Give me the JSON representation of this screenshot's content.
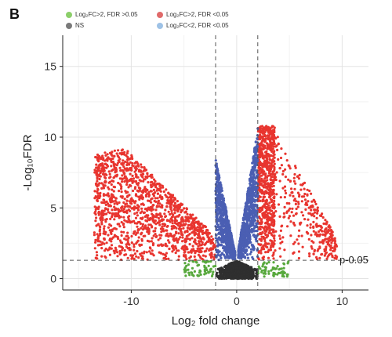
{
  "panel_label": "B",
  "chart_data": {
    "type": "scatter",
    "xlabel": "Log₂ fold change",
    "ylabel": "-Log₁₀FDR",
    "xlim": [
      -16.5,
      12.5
    ],
    "ylim": [
      -0.8,
      17.2
    ],
    "xticks": [
      -10,
      0,
      10
    ],
    "yticks": [
      0,
      5,
      10,
      15
    ],
    "grid": true,
    "legend_position": "top",
    "legend": [
      {
        "label": "Log₂FC>2, FDR >0.05",
        "color": "#8ccf6a"
      },
      {
        "label": "Log₂FC>2, FDR <0.05",
        "color": "#e06a6a"
      },
      {
        "label": "NS",
        "color": "#7a7a7a"
      },
      {
        "label": "Log₂FC<2, FDR <0.05",
        "color": "#9ec2e6"
      }
    ],
    "series_colors": {
      "sig_fc": "#e8352f",
      "sig_only": "#4b5fb3",
      "fc_only": "#57a83c",
      "ns": "#2f2f2f"
    },
    "thresholds": {
      "fc": 2,
      "p_line": 1.3
    },
    "threshold_label": "p-0.05",
    "approx_regions": [
      {
        "group": "sig_fc",
        "side": "left",
        "x_range": [
          -14,
          -2
        ],
        "y_max": 9.5
      },
      {
        "group": "sig_fc",
        "side": "right",
        "x_range": [
          2,
          10
        ],
        "y_max": 11
      }
    ]
  }
}
